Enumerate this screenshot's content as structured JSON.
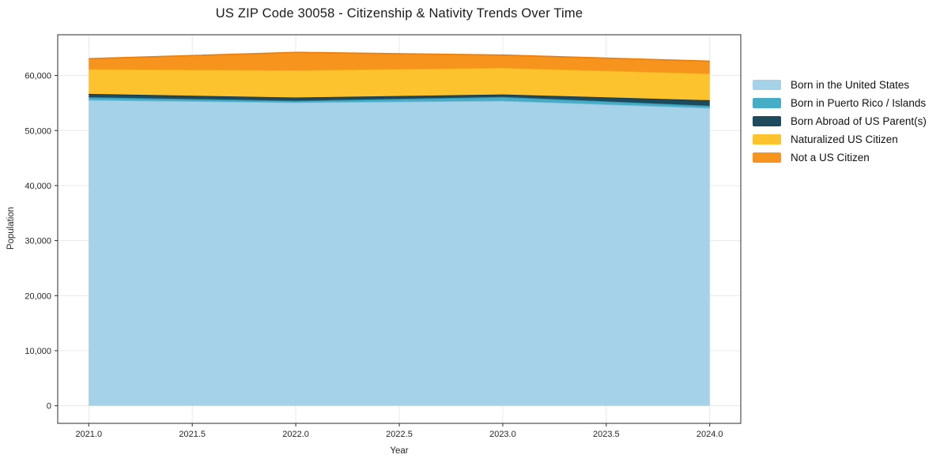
{
  "title": "US ZIP Code 30058 - Citizenship & Nativity Trends Over Time",
  "chart_data": {
    "type": "area",
    "stacked": true,
    "title": "US ZIP Code 30058 - Citizenship & Nativity Trends Over Time",
    "xlabel": "Year",
    "ylabel": "Population",
    "x": [
      2021,
      2022,
      2023,
      2024
    ],
    "series": [
      {
        "name": "Born in the United States",
        "color": "#a5d2e8",
        "edge": "#85bcd9",
        "values": [
          55550,
          55100,
          55400,
          54100
        ]
      },
      {
        "name": "Born in Puerto Rico / Islands",
        "color": "#47adc6",
        "edge": "#2f97b1",
        "values": [
          500,
          300,
          700,
          400
        ]
      },
      {
        "name": "Born Abroad of US Parent(s)",
        "color": "#1e4a5e",
        "edge": "#143646",
        "values": [
          600,
          600,
          450,
          1000
        ]
      },
      {
        "name": "Naturalized US Citizen",
        "color": "#fdc32f",
        "edge": "#f0ad17",
        "values": [
          4500,
          4950,
          4850,
          4850
        ]
      },
      {
        "name": "Not a US Citizen",
        "color": "#f7941e",
        "edge": "#ea7f0d",
        "values": [
          1900,
          3250,
          2300,
          2250
        ]
      }
    ],
    "xlim": [
      2020.85,
      2024.15
    ],
    "ylim": [
      -3200,
      67400
    ],
    "xticks": {
      "values": [
        2021,
        2021.5,
        2022,
        2022.5,
        2023,
        2023.5,
        2024
      ],
      "labels": [
        "2021.0",
        "2021.5",
        "2022.0",
        "2022.5",
        "2023.0",
        "2023.5",
        "2024.0"
      ]
    },
    "yticks": {
      "values": [
        0,
        10000,
        20000,
        30000,
        40000,
        50000,
        60000
      ],
      "labels": [
        "0",
        "10,000",
        "20,000",
        "30,000",
        "40,000",
        "50,000",
        "60,000"
      ]
    },
    "grid": true,
    "grid_color": "#e8e8e8",
    "frame_color": "#2b2b2b",
    "tick_label_color": "#262626",
    "legend_position": "right"
  }
}
